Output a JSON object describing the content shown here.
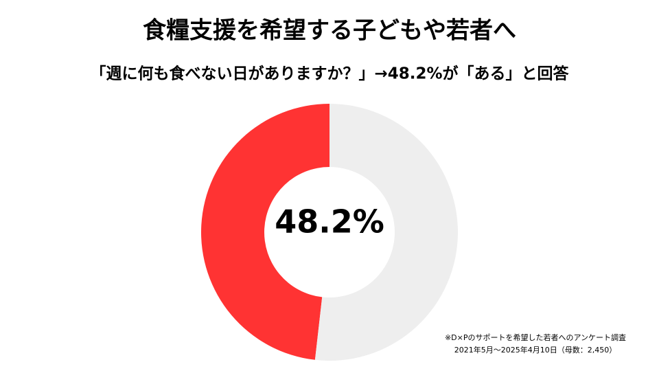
{
  "chart_data": {
    "type": "donut",
    "title": "食糧支援を希望する子どもや若者へ",
    "subtitle": "「週に何も食べない日がありますか？」→48.2%が「ある」と回答",
    "values": [
      48.2,
      51.8
    ],
    "value_labels": [
      "48.2%",
      null
    ],
    "colors": [
      "#ff3333",
      "#eeeeee"
    ],
    "footnotes": [
      "※D×Pのサポートを希望した若者へのアンケート調査",
      "2021年5月〜2025年4月10日（母数：2,450）"
    ]
  }
}
